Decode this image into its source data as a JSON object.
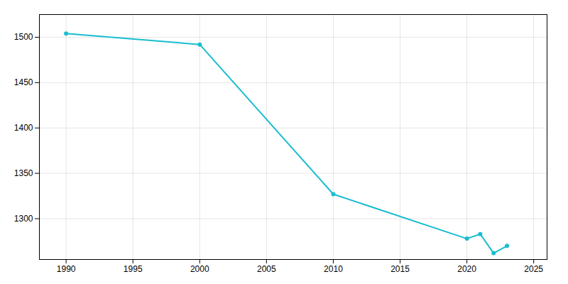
{
  "chart_data": {
    "type": "line",
    "x": [
      1990,
      2000,
      2010,
      2020,
      2021,
      2022,
      2023
    ],
    "values": [
      1504,
      1492,
      1327,
      1278,
      1283,
      1262,
      1270
    ],
    "color": "#17BECF",
    "marker": "o",
    "xlim": [
      1988,
      2026
    ],
    "ylim": [
      1255,
      1525
    ],
    "xticks": [
      1990,
      1995,
      2000,
      2005,
      2010,
      2015,
      2020,
      2025
    ],
    "yticks": [
      1300,
      1350,
      1400,
      1450,
      1500
    ],
    "grid": true
  }
}
